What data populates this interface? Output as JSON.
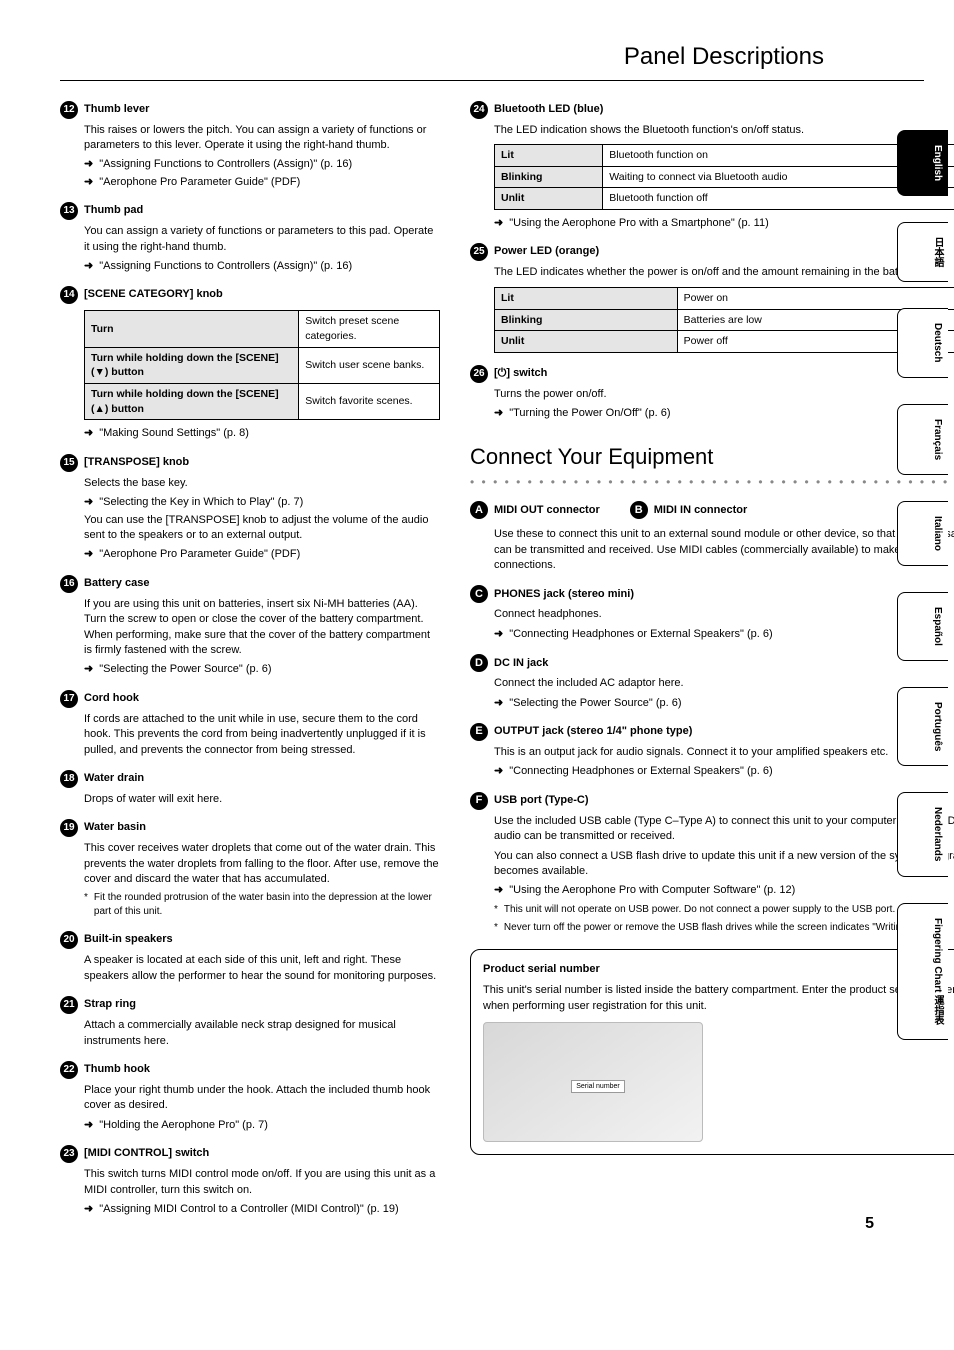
{
  "pageTitle": "Panel Descriptions",
  "pageNumber": "5",
  "langs": [
    "English",
    "日本語",
    "Deutsch",
    "Français",
    "Italiano",
    "Español",
    "Português",
    "Nederlands",
    "Fingering Chart\n運指表"
  ],
  "left": [
    {
      "num": "12",
      "title": "Thumb lever",
      "body": [
        "This raises or lowers the pitch. You can assign a variety of functions or parameters to this lever. Operate it using the right-hand thumb."
      ],
      "refs": [
        "\"Assigning Functions to Controllers (Assign)\" (p. 16)",
        "\"Aerophone Pro Parameter Guide\" (PDF)"
      ]
    },
    {
      "num": "13",
      "title": "Thumb pad",
      "body": [
        "You can assign a variety of functions or parameters to this pad. Operate it using the right-hand thumb."
      ],
      "refs": [
        "\"Assigning Functions to Controllers (Assign)\" (p. 16)"
      ]
    },
    {
      "num": "14",
      "title": "[SCENE CATEGORY] knob",
      "table": [
        [
          "Turn",
          "Switch preset scene categories."
        ],
        [
          "Turn while holding down the [SCENE] (▼) button",
          "Switch user scene banks."
        ],
        [
          "Turn while holding down the [SCENE] (▲) button",
          "Switch favorite scenes."
        ]
      ],
      "refs": [
        "\"Making Sound Settings\" (p. 8)"
      ]
    },
    {
      "num": "15",
      "title": "[TRANSPOSE] knob",
      "body": [
        "Selects the base key."
      ],
      "refs": [
        "\"Selecting the Key in Which to Play\" (p. 7)"
      ],
      "body2": [
        "You can use the [TRANSPOSE] knob to adjust the volume of the audio sent to the speakers or to an external output."
      ],
      "refs2": [
        "\"Aerophone Pro Parameter Guide\" (PDF)"
      ]
    },
    {
      "num": "16",
      "title": "Battery case",
      "body": [
        "If you are using this unit on batteries, insert six Ni-MH batteries (AA). Turn the screw to open or close the cover of the battery compartment. When performing, make sure that the cover of the battery compartment is firmly fastened with the screw."
      ],
      "refs": [
        "\"Selecting the Power Source\" (p. 6)"
      ]
    },
    {
      "num": "17",
      "title": "Cord hook",
      "body": [
        "If cords are attached to the unit while in use, secure them to the cord hook. This prevents the cord from being inadvertently unplugged if it is pulled, and prevents the connector from being stressed."
      ]
    },
    {
      "num": "18",
      "title": "Water drain",
      "body": [
        "Drops of water will exit here."
      ]
    },
    {
      "num": "19",
      "title": "Water basin",
      "body": [
        "This cover receives water droplets that come out of the water drain. This prevents the water droplets from falling to the floor. After use, remove the cover and discard the water that has accumulated."
      ],
      "notes": [
        "Fit the rounded protrusion of the water basin into the depression at the lower part of this unit."
      ]
    },
    {
      "num": "20",
      "title": "Built-in speakers",
      "body": [
        "A speaker is located at each side of this unit, left and right. These speakers allow the performer to hear the sound for monitoring purposes."
      ]
    },
    {
      "num": "21",
      "title": "Strap ring",
      "body": [
        "Attach a commercially available neck strap designed for musical instruments here."
      ]
    },
    {
      "num": "22",
      "title": "Thumb hook",
      "body": [
        "Place your right thumb under the hook. Attach the included thumb hook cover as desired."
      ],
      "refs": [
        "\"Holding the Aerophone Pro\" (p. 7)"
      ]
    },
    {
      "num": "23",
      "title": "[MIDI CONTROL] switch",
      "body": [
        "This switch turns MIDI control mode on/off. If you are using this unit as a MIDI controller, turn this switch on."
      ],
      "refs": [
        "\"Assigning MIDI Control to a Controller (MIDI Control)\" (p. 19)"
      ]
    }
  ],
  "right": [
    {
      "num": "24",
      "title": "Bluetooth LED (blue)",
      "body": [
        "The LED indication shows the Bluetooth function's on/off status."
      ],
      "table": [
        [
          "Lit",
          "Bluetooth function on"
        ],
        [
          "Blinking",
          "Waiting to connect via Bluetooth audio"
        ],
        [
          "Unlit",
          "Bluetooth function off"
        ]
      ],
      "refs": [
        "\"Using the Aerophone Pro with a Smartphone\" (p. 11)"
      ]
    },
    {
      "num": "25",
      "title": "Power LED (orange)",
      "body": [
        "The LED indicates whether the power is on/off and the amount remaining in the batteries."
      ],
      "table": [
        [
          "Lit",
          "Power on"
        ],
        [
          "Blinking",
          "Batteries are low"
        ],
        [
          "Unlit",
          "Power off"
        ]
      ]
    },
    {
      "num": "26",
      "title": "[⏻] switch",
      "body": [
        "Turns the power on/off."
      ],
      "refs": [
        "\"Turning the Power On/Off\" (p. 6)"
      ]
    }
  ],
  "connect": {
    "title": "Connect Your Equipment",
    "ab": {
      "a": "MIDI OUT connector",
      "b": "MIDI IN connector",
      "body": [
        "Use these to connect this unit to an external sound module or other device, so that MIDI messages can be transmitted and received. Use MIDI cables (commercially available) to make these connections."
      ]
    },
    "items": [
      {
        "let": "C",
        "title": "PHONES jack (stereo mini)",
        "body": [
          "Connect headphones."
        ],
        "refs": [
          "\"Connecting Headphones or External Speakers\" (p. 6)"
        ]
      },
      {
        "let": "D",
        "title": "DC IN jack",
        "body": [
          "Connect the included AC adaptor here."
        ],
        "refs": [
          "\"Selecting the Power Source\" (p. 6)"
        ]
      },
      {
        "let": "E",
        "title": "OUTPUT jack (stereo 1/4\" phone type)",
        "body": [
          "This is an output jack for audio signals. Connect it to your amplified speakers etc."
        ],
        "refs": [
          "\"Connecting Headphones or External Speakers\" (p. 6)"
        ]
      },
      {
        "let": "F",
        "title": "USB port (Type-C)",
        "body": [
          "Use the included USB cable (Type C–Type A) to connect this unit to your computer so that MIDI and audio can be transmitted or received.",
          "You can also connect a USB flash drive to update this unit if a new version of the system program becomes available."
        ],
        "refs": [
          "\"Using the Aerophone Pro with Computer Software\" (p. 12)"
        ],
        "notes": [
          "This unit will not operate on USB power. Do not connect a power supply to the USB port.",
          "Never turn off the power or remove the USB flash drives while the screen indicates \"Writing...\""
        ]
      }
    ],
    "callout": {
      "title": "Product serial number",
      "body": "This unit's serial number is listed inside the battery compartment. Enter the product serial number when performing user registration for this unit.",
      "label": "Serial number"
    }
  }
}
